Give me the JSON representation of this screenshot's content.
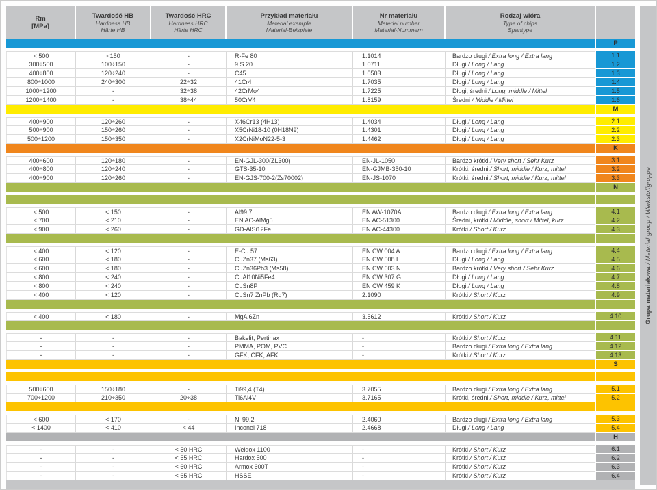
{
  "header": {
    "cells": [
      {
        "lines": [
          "Rm",
          "[MPa]"
        ],
        "all_bold": true
      },
      {
        "lines": [
          "Twardość HB",
          "Hardness HB",
          "Härte HB"
        ]
      },
      {
        "lines": [
          "Twardość HRC",
          "Hardness HRC",
          "Härte HRC"
        ]
      },
      {
        "lines": [
          "Przykład materiału",
          "Material example",
          "Material-Beispiele"
        ]
      },
      {
        "lines": [
          "Nr materiału",
          "Material number",
          "Material-Nummern"
        ]
      },
      {
        "lines": [
          "Rodzaj wióra",
          "Type of chips",
          "Spantype"
        ]
      }
    ]
  },
  "side_band": {
    "bold": "Grupa materiałowa",
    "italic": " / Material group / Werkstoffgruppe"
  },
  "colors": {
    "header_gray": "#c5c6c8",
    "p_blue": "#1898d5",
    "m_yellow": "#ffec00",
    "k_orange": "#f0861c",
    "n_green": "#a8ba4e",
    "s_amber": "#fdc300",
    "h_gray": "#b1b2b4"
  },
  "sections": [
    {
      "letter": "P",
      "color": "#1898d5",
      "groups": [
        [
          {
            "rm": "< 500",
            "hb": "<150",
            "hrc": "-",
            "example": "R-Fe 80",
            "nr": "1.1014",
            "chips_pl": "Bardzo długi",
            "chips_intl": " / Extra long / Extra lang",
            "code": "1.1"
          },
          {
            "rm": "300÷500",
            "hb": "100÷150",
            "hrc": "-",
            "example": "9 S 20",
            "nr": "1.0711",
            "chips_pl": "Długi",
            "chips_intl": " / Long / Lang",
            "code": "1.2"
          },
          {
            "rm": "400÷800",
            "hb": "120÷240",
            "hrc": "-",
            "example": "C45",
            "nr": "1.0503",
            "chips_pl": "Długi",
            "chips_intl": " / Long / Lang",
            "code": "1.3"
          },
          {
            "rm": "800÷1000",
            "hb": "240÷300",
            "hrc": "22÷32",
            "example": "41Cr4",
            "nr": "1.7035",
            "chips_pl": "Długi",
            "chips_intl": " / Long / Lang",
            "code": "1.4"
          },
          {
            "rm": "1000÷1200",
            "hb": "-",
            "hrc": "32÷38",
            "example": "42CrMo4",
            "nr": "1.7225",
            "chips_pl": "Długi, średni",
            "chips_intl": " / Long, middle / Mittel",
            "code": "1.5"
          },
          {
            "rm": "1200÷1400",
            "hb": "-",
            "hrc": "38÷44",
            "example": "50CrV4",
            "nr": "1.8159",
            "chips_pl": "Średni",
            "chips_intl": " / Middle / Mittel",
            "code": "1.6"
          }
        ]
      ]
    },
    {
      "letter": "M",
      "color": "#ffec00",
      "groups": [
        [
          {
            "rm": "400÷900",
            "hb": "120÷260",
            "hrc": "-",
            "example": "X46Cr13 (4H13)",
            "nr": "1.4034",
            "chips_pl": "Długi",
            "chips_intl": " / Long / Lang",
            "code": "2.1"
          },
          {
            "rm": "500÷900",
            "hb": "150÷260",
            "hrc": "-",
            "example": "X5CrNi18-10 (0H18N9)",
            "nr": "1.4301",
            "chips_pl": "Długi",
            "chips_intl": " / Long / Lang",
            "code": "2.2"
          },
          {
            "rm": "500÷1200",
            "hb": "150÷350",
            "hrc": "-",
            "example": "X2CrNiMoN22-5-3",
            "nr": "1.4462",
            "chips_pl": "Długi",
            "chips_intl": " / Long / Lang",
            "code": "2.3"
          }
        ]
      ]
    },
    {
      "letter": "K",
      "color": "#f0861c",
      "groups": [
        [
          {
            "rm": "400÷600",
            "hb": "120÷180",
            "hrc": "-",
            "example": "EN-GJL-300(ZL300)",
            "nr": "EN-JL-1050",
            "chips_pl": "Bardzo krótki",
            "chips_intl": " / Very short / Sehr Kurz",
            "code": "3.1"
          },
          {
            "rm": "400÷800",
            "hb": "120÷240",
            "hrc": "-",
            "example": "GTS-35-10",
            "nr": "EN-GJMB-350-10",
            "chips_pl": "Krótki, średni",
            "chips_intl": " / Short, middle / Kurz, mittel",
            "code": "3.2"
          },
          {
            "rm": "400÷900",
            "hb": "120÷260",
            "hrc": "-",
            "example": "EN-GJS-700-2(Zs70002)",
            "nr": "EN-JS-1070",
            "chips_pl": "Krótki, średni",
            "chips_intl": " / Short, middle / Kurz, mittel",
            "code": "3.3"
          }
        ]
      ]
    },
    {
      "letter": "N",
      "color": "#a8ba4e",
      "groups": [
        [
          {
            "rm": "< 500",
            "hb": "< 150",
            "hrc": "-",
            "example": "Al99,7",
            "nr": "EN AW-1070A",
            "chips_pl": "Bardzo długi",
            "chips_intl": " / Extra long / Extra lang",
            "code": "4.1"
          },
          {
            "rm": "< 700",
            "hb": "< 210",
            "hrc": "-",
            "example": "EN AC-AlMg5",
            "nr": "EN AC-51300",
            "chips_pl": "Średni, krótki",
            "chips_intl": " / Middle, short / Mittel, kurz",
            "code": "4.2"
          },
          {
            "rm": "< 900",
            "hb": "< 260",
            "hrc": "-",
            "example": "GD-AlSi12Fe",
            "nr": "EN AC-44300",
            "chips_pl": "Krótki",
            "chips_intl": " / Short / Kurz",
            "code": "4.3"
          }
        ],
        [
          {
            "rm": "< 400",
            "hb": "< 120",
            "hrc": "-",
            "example": "E-Cu 57",
            "nr": "EN CW 004 A",
            "chips_pl": "Bardzo długi",
            "chips_intl": " / Extra long / Extra lang",
            "code": "4.4"
          },
          {
            "rm": "< 600",
            "hb": "< 180",
            "hrc": "-",
            "example": "CuZn37 (Ms63)",
            "nr": "EN CW 508 L",
            "chips_pl": "Długi",
            "chips_intl": " / Long / Lang",
            "code": "4.5"
          },
          {
            "rm": "< 600",
            "hb": "< 180",
            "hrc": "-",
            "example": "CuZn36Pb3 (Ms58)",
            "nr": "EN CW 603 N",
            "chips_pl": "Bardzo krótki",
            "chips_intl": " / Very short / Sehr Kurz",
            "code": "4.6"
          },
          {
            "rm": "< 800",
            "hb": "< 240",
            "hrc": "-",
            "example": "CuAl10Ni5Fe4",
            "nr": "EN CW 307 G",
            "chips_pl": "Długi",
            "chips_intl": " / Long / Lang",
            "code": "4.7"
          },
          {
            "rm": "< 800",
            "hb": "< 240",
            "hrc": "-",
            "example": "CuSn8P",
            "nr": "EN CW 459 K",
            "chips_pl": "Długi",
            "chips_intl": " / Long / Lang",
            "code": "4.8"
          },
          {
            "rm": "< 400",
            "hb": "< 120",
            "hrc": "-",
            "example": "CuSn7 ZnPb (Rg7)",
            "nr": "2.1090",
            "chips_pl": "Krótki",
            "chips_intl": " / Short / Kurz",
            "code": "4.9"
          }
        ],
        [
          {
            "rm": "< 400",
            "hb": "< 180",
            "hrc": "-",
            "example": "MgAl6Zn",
            "nr": "3.5612",
            "chips_pl": "Krótki",
            "chips_intl": " / Short / Kurz",
            "code": "4.10"
          }
        ],
        [
          {
            "rm": "-",
            "hb": "-",
            "hrc": "-",
            "example": "Bakelit, Pertinax",
            "nr": "-",
            "chips_pl": "Krótki",
            "chips_intl": " / Short / Kurz",
            "code": "4.11"
          },
          {
            "rm": "-",
            "hb": "-",
            "hrc": "-",
            "example": "PMMA, POM, PVC",
            "nr": "-",
            "chips_pl": "Bardzo długi",
            "chips_intl": " / Extra long / Extra lang",
            "code": "4.12"
          },
          {
            "rm": "-",
            "hb": "-",
            "hrc": "-",
            "example": "GFK, CFK, AFK",
            "nr": "-",
            "chips_pl": "Krótki",
            "chips_intl": " / Short / Kurz",
            "code": "4.13"
          }
        ]
      ]
    },
    {
      "letter": "S",
      "color": "#fdc300",
      "groups": [
        [
          {
            "rm": "500÷600",
            "hb": "150÷180",
            "hrc": "-",
            "example": "Ti99,4 (T4)",
            "nr": "3.7055",
            "chips_pl": "Bardzo długi",
            "chips_intl": " / Extra long / Extra lang",
            "code": "5.1"
          },
          {
            "rm": "700÷1200",
            "hb": "210÷350",
            "hrc": "20÷38",
            "example": "Ti6Al4V",
            "nr": "3.7165",
            "chips_pl": "Krótki, średni",
            "chips_intl": " / Short, middle / Kurz, mittel",
            "code": "5.2"
          }
        ],
        [
          {
            "rm": "< 600",
            "hb": "< 170",
            "hrc": "-",
            "example": "Ni 99.2",
            "nr": "2.4060",
            "chips_pl": "Bardzo długi",
            "chips_intl": " / Extra long / Extra lang",
            "code": "5.3"
          },
          {
            "rm": "< 1400",
            "hb": "< 410",
            "hrc": "< 44",
            "example": "Inconel 718",
            "nr": "2.4668",
            "chips_pl": "Długi",
            "chips_intl": " / Long / Lang",
            "code": "5.4"
          }
        ]
      ]
    },
    {
      "letter": "H",
      "color": "#b1b2b4",
      "groups": [
        [
          {
            "rm": "-",
            "hb": "-",
            "hrc": "< 50 HRC",
            "example": "Weldox 1100",
            "nr": "-",
            "chips_pl": "Krótki",
            "chips_intl": " / Short / Kurz",
            "code": "6.1"
          },
          {
            "rm": "-",
            "hb": "-",
            "hrc": "< 55 HRC",
            "example": "Hardox 500",
            "nr": "-",
            "chips_pl": "Krótki",
            "chips_intl": " / Short / Kurz",
            "code": "6.2"
          },
          {
            "rm": "-",
            "hb": "-",
            "hrc": "< 60 HRC",
            "example": "Armox 600T",
            "nr": "-",
            "chips_pl": "Krótki",
            "chips_intl": " / Short / Kurz",
            "code": "6.3"
          },
          {
            "rm": "-",
            "hb": "-",
            "hrc": "< 65 HRC",
            "example": "HSSE",
            "nr": "-",
            "chips_pl": "Krótki",
            "chips_intl": " / Short / Kurz",
            "code": "6.4"
          }
        ]
      ]
    }
  ]
}
